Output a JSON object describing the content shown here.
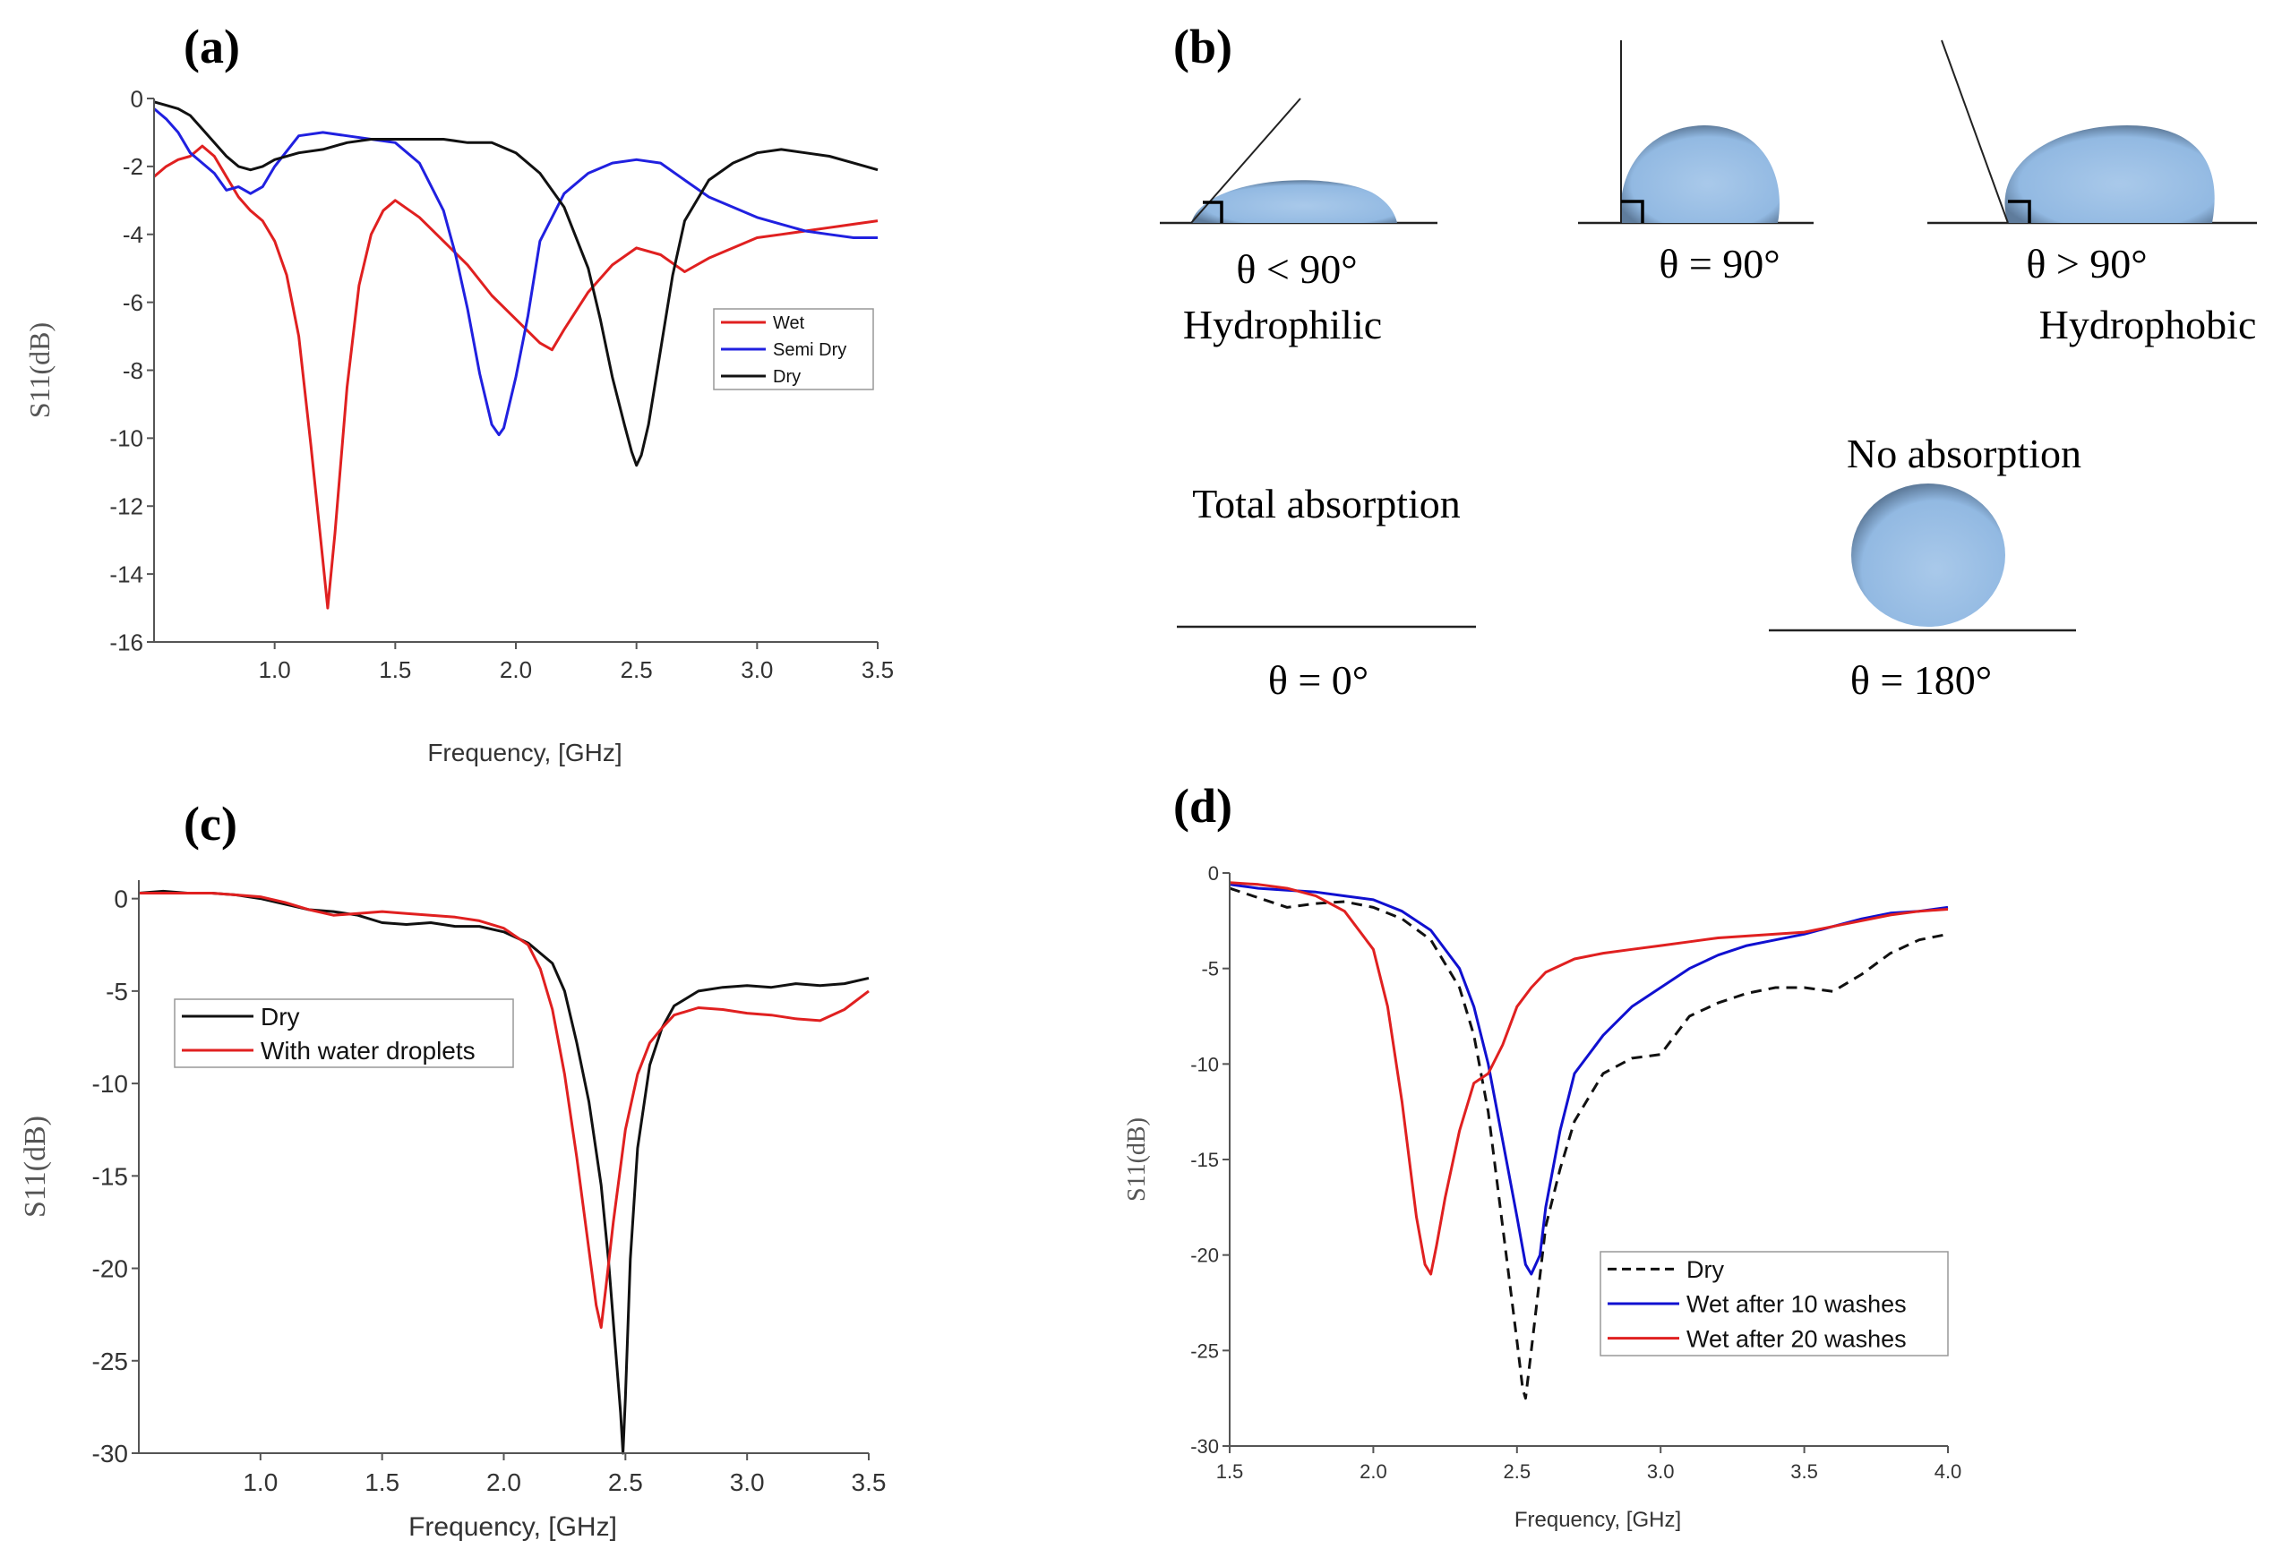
{
  "panels": {
    "a": {
      "label": "(a)"
    },
    "b": {
      "label": "(b)",
      "cases": [
        {
          "angle_text": "θ < 90°",
          "name": "Hydrophilic"
        },
        {
          "angle_text": "θ = 90°",
          "name": ""
        },
        {
          "angle_text": "θ > 90°",
          "name": "Hydrophobic"
        },
        {
          "angle_text": "θ = 0°",
          "name": "Total absorption"
        },
        {
          "angle_text": "θ = 180°",
          "name": "No absorption"
        }
      ]
    },
    "c": {
      "label": "(c)"
    },
    "d": {
      "label": "(d)"
    }
  },
  "chart_data": [
    {
      "id": "a",
      "type": "line",
      "title": "",
      "xlabel": "Frequency, [GHz]",
      "ylabel": "S11(dB)",
      "xlim": [
        0.5,
        3.5
      ],
      "ylim": [
        -16,
        0
      ],
      "xticks": [
        "1.0",
        "1.5",
        "2.0",
        "2.5",
        "3.0",
        "3.5"
      ],
      "yticks": [
        "0",
        "-2",
        "-4",
        "-6",
        "-8",
        "-10",
        "-12",
        "-14",
        "-16"
      ],
      "legend": "center-right",
      "series": [
        {
          "name": "Wet",
          "color": "#e02020",
          "dash": false,
          "x": [
            0.5,
            0.55,
            0.6,
            0.65,
            0.7,
            0.75,
            0.8,
            0.85,
            0.9,
            0.95,
            1.0,
            1.05,
            1.1,
            1.15,
            1.2,
            1.22,
            1.25,
            1.3,
            1.35,
            1.4,
            1.45,
            1.5,
            1.6,
            1.7,
            1.8,
            1.9,
            2.0,
            2.1,
            2.15,
            2.2,
            2.3,
            2.4,
            2.5,
            2.6,
            2.7,
            2.8,
            2.9,
            3.0,
            3.1,
            3.2,
            3.3,
            3.4,
            3.5
          ],
          "y": [
            -2.3,
            -2.0,
            -1.8,
            -1.7,
            -1.4,
            -1.7,
            -2.3,
            -2.9,
            -3.3,
            -3.6,
            -4.2,
            -5.2,
            -7.0,
            -10.2,
            -13.6,
            -15.0,
            -12.8,
            -8.5,
            -5.5,
            -4.0,
            -3.3,
            -3.0,
            -3.5,
            -4.2,
            -4.9,
            -5.8,
            -6.5,
            -7.2,
            -7.4,
            -6.8,
            -5.7,
            -4.9,
            -4.4,
            -4.6,
            -5.1,
            -4.7,
            -4.4,
            -4.1,
            -4.0,
            -3.9,
            -3.8,
            -3.7,
            -3.6
          ]
        },
        {
          "name": "Semi Dry",
          "color": "#2020e0",
          "dash": false,
          "x": [
            0.5,
            0.55,
            0.6,
            0.65,
            0.7,
            0.75,
            0.8,
            0.85,
            0.9,
            0.95,
            1.0,
            1.1,
            1.2,
            1.3,
            1.4,
            1.5,
            1.6,
            1.7,
            1.75,
            1.8,
            1.85,
            1.9,
            1.93,
            1.95,
            2.0,
            2.05,
            2.1,
            2.2,
            2.3,
            2.4,
            2.5,
            2.6,
            2.7,
            2.8,
            2.9,
            3.0,
            3.1,
            3.2,
            3.3,
            3.4,
            3.5
          ],
          "y": [
            -0.3,
            -0.6,
            -1.0,
            -1.6,
            -1.9,
            -2.2,
            -2.7,
            -2.6,
            -2.8,
            -2.6,
            -2.0,
            -1.1,
            -1.0,
            -1.1,
            -1.2,
            -1.3,
            -1.9,
            -3.3,
            -4.6,
            -6.2,
            -8.1,
            -9.6,
            -9.9,
            -9.7,
            -8.2,
            -6.4,
            -4.2,
            -2.8,
            -2.2,
            -1.9,
            -1.8,
            -1.9,
            -2.4,
            -2.9,
            -3.2,
            -3.5,
            -3.7,
            -3.9,
            -4.0,
            -4.1,
            -4.1
          ]
        },
        {
          "name": "Dry",
          "color": "#111111",
          "dash": false,
          "x": [
            0.5,
            0.55,
            0.6,
            0.65,
            0.7,
            0.75,
            0.8,
            0.85,
            0.9,
            0.95,
            1.0,
            1.1,
            1.2,
            1.3,
            1.4,
            1.5,
            1.6,
            1.7,
            1.8,
            1.9,
            2.0,
            2.1,
            2.2,
            2.3,
            2.35,
            2.4,
            2.45,
            2.48,
            2.5,
            2.52,
            2.55,
            2.6,
            2.65,
            2.7,
            2.8,
            2.9,
            3.0,
            3.1,
            3.2,
            3.3,
            3.4,
            3.5
          ],
          "y": [
            -0.1,
            -0.2,
            -0.3,
            -0.5,
            -0.9,
            -1.3,
            -1.7,
            -2.0,
            -2.1,
            -2.0,
            -1.8,
            -1.6,
            -1.5,
            -1.3,
            -1.2,
            -1.2,
            -1.2,
            -1.2,
            -1.3,
            -1.3,
            -1.6,
            -2.2,
            -3.2,
            -5.0,
            -6.5,
            -8.2,
            -9.6,
            -10.4,
            -10.8,
            -10.5,
            -9.6,
            -7.4,
            -5.2,
            -3.6,
            -2.4,
            -1.9,
            -1.6,
            -1.5,
            -1.6,
            -1.7,
            -1.9,
            -2.1
          ]
        }
      ]
    },
    {
      "id": "c",
      "type": "line",
      "title": "",
      "xlabel": "Frequency, [GHz]",
      "ylabel": "S11(dB)",
      "xlim": [
        0.5,
        3.5
      ],
      "ylim": [
        -30,
        1
      ],
      "xticks": [
        "1.0",
        "1.5",
        "2.0",
        "2.5",
        "3.0",
        "3.5"
      ],
      "yticks": [
        "0",
        "-5",
        "-10",
        "-15",
        "-20",
        "-25",
        "-30"
      ],
      "legend": "upper-left",
      "series": [
        {
          "name": "Dry",
          "color": "#111111",
          "dash": false,
          "x": [
            0.5,
            0.6,
            0.7,
            0.8,
            0.9,
            1.0,
            1.1,
            1.2,
            1.3,
            1.4,
            1.5,
            1.6,
            1.7,
            1.8,
            1.9,
            2.0,
            2.1,
            2.2,
            2.25,
            2.3,
            2.35,
            2.4,
            2.43,
            2.46,
            2.48,
            2.49,
            2.5,
            2.52,
            2.55,
            2.6,
            2.65,
            2.7,
            2.8,
            2.9,
            3.0,
            3.1,
            3.2,
            3.3,
            3.4,
            3.5
          ],
          "y": [
            0.3,
            0.4,
            0.3,
            0.3,
            0.2,
            0.0,
            -0.3,
            -0.6,
            -0.7,
            -0.9,
            -1.3,
            -1.4,
            -1.3,
            -1.5,
            -1.5,
            -1.8,
            -2.4,
            -3.5,
            -5.0,
            -7.8,
            -11.0,
            -15.5,
            -19.5,
            -24.5,
            -27.8,
            -30.0,
            -27.0,
            -19.5,
            -13.5,
            -9.0,
            -7.0,
            -5.8,
            -5.0,
            -4.8,
            -4.7,
            -4.8,
            -4.6,
            -4.7,
            -4.6,
            -4.3
          ]
        },
        {
          "name": "With water droplets",
          "color": "#e02020",
          "dash": false,
          "x": [
            0.5,
            0.6,
            0.7,
            0.8,
            0.9,
            1.0,
            1.1,
            1.2,
            1.3,
            1.4,
            1.5,
            1.6,
            1.7,
            1.8,
            1.9,
            2.0,
            2.1,
            2.15,
            2.2,
            2.25,
            2.3,
            2.35,
            2.38,
            2.4,
            2.42,
            2.45,
            2.5,
            2.55,
            2.6,
            2.65,
            2.7,
            2.8,
            2.9,
            3.0,
            3.1,
            3.2,
            3.3,
            3.4,
            3.5
          ],
          "y": [
            0.3,
            0.3,
            0.3,
            0.3,
            0.2,
            0.1,
            -0.2,
            -0.6,
            -0.9,
            -0.8,
            -0.7,
            -0.8,
            -0.9,
            -1.0,
            -1.2,
            -1.6,
            -2.5,
            -3.8,
            -6.0,
            -9.5,
            -14.0,
            -19.0,
            -22.0,
            -23.2,
            -21.0,
            -17.5,
            -12.5,
            -9.5,
            -7.8,
            -7.0,
            -6.3,
            -5.9,
            -6.0,
            -6.2,
            -6.3,
            -6.5,
            -6.6,
            -6.0,
            -5.0
          ]
        }
      ]
    },
    {
      "id": "d",
      "type": "line",
      "title": "",
      "xlabel": "Frequency, [GHz]",
      "ylabel": "S11(dB)",
      "xlim": [
        1.5,
        4.0
      ],
      "ylim": [
        -30,
        0
      ],
      "xticks": [
        "1.5",
        "2.0",
        "2.5",
        "3.0",
        "3.5",
        "4.0"
      ],
      "yticks": [
        "0",
        "-5",
        "-10",
        "-15",
        "-20",
        "-25",
        "-30"
      ],
      "legend": "lower-right",
      "series": [
        {
          "name": "Dry",
          "color": "#111111",
          "dash": true,
          "x": [
            1.5,
            1.6,
            1.7,
            1.8,
            1.9,
            2.0,
            2.1,
            2.2,
            2.3,
            2.35,
            2.4,
            2.45,
            2.5,
            2.52,
            2.53,
            2.55,
            2.6,
            2.65,
            2.7,
            2.8,
            2.9,
            3.0,
            3.1,
            3.2,
            3.3,
            3.4,
            3.5,
            3.6,
            3.7,
            3.8,
            3.9,
            4.0
          ],
          "y": [
            -0.8,
            -1.3,
            -1.8,
            -1.6,
            -1.5,
            -1.8,
            -2.4,
            -3.5,
            -6.0,
            -8.5,
            -12.5,
            -18.5,
            -24.5,
            -27.0,
            -27.5,
            -25.0,
            -18.5,
            -15.5,
            -13.0,
            -10.5,
            -9.7,
            -9.5,
            -7.5,
            -6.8,
            -6.3,
            -6.0,
            -6.0,
            -6.2,
            -5.3,
            -4.2,
            -3.5,
            -3.2
          ]
        },
        {
          "name": "Wet after 10 washes",
          "color": "#1010d0",
          "dash": false,
          "x": [
            1.5,
            1.6,
            1.7,
            1.8,
            1.9,
            2.0,
            2.1,
            2.2,
            2.3,
            2.35,
            2.4,
            2.45,
            2.5,
            2.53,
            2.55,
            2.58,
            2.6,
            2.65,
            2.7,
            2.8,
            2.9,
            3.0,
            3.1,
            3.2,
            3.3,
            3.4,
            3.5,
            3.6,
            3.7,
            3.8,
            3.9,
            4.0
          ],
          "y": [
            -0.6,
            -0.8,
            -0.9,
            -1.0,
            -1.2,
            -1.4,
            -2.0,
            -3.0,
            -5.0,
            -7.0,
            -10.0,
            -14.0,
            -18.0,
            -20.5,
            -21.0,
            -20.0,
            -17.5,
            -13.5,
            -10.5,
            -8.5,
            -7.0,
            -6.0,
            -5.0,
            -4.3,
            -3.8,
            -3.5,
            -3.2,
            -2.8,
            -2.4,
            -2.1,
            -2.0,
            -1.8
          ]
        },
        {
          "name": "Wet after 20 washes",
          "color": "#e02020",
          "dash": false,
          "x": [
            1.5,
            1.6,
            1.7,
            1.8,
            1.9,
            2.0,
            2.05,
            2.1,
            2.15,
            2.18,
            2.2,
            2.22,
            2.25,
            2.3,
            2.35,
            2.4,
            2.45,
            2.5,
            2.55,
            2.6,
            2.7,
            2.8,
            2.9,
            3.0,
            3.1,
            3.2,
            3.3,
            3.4,
            3.5,
            3.6,
            3.7,
            3.8,
            3.9,
            4.0
          ],
          "y": [
            -0.5,
            -0.6,
            -0.8,
            -1.2,
            -2.0,
            -4.0,
            -7.0,
            -12.0,
            -18.0,
            -20.5,
            -21.0,
            -19.5,
            -17.0,
            -13.5,
            -11.0,
            -10.5,
            -9.0,
            -7.0,
            -6.0,
            -5.2,
            -4.5,
            -4.2,
            -4.0,
            -3.8,
            -3.6,
            -3.4,
            -3.3,
            -3.2,
            -3.1,
            -2.8,
            -2.5,
            -2.2,
            -2.0,
            -1.9
          ]
        }
      ]
    }
  ]
}
